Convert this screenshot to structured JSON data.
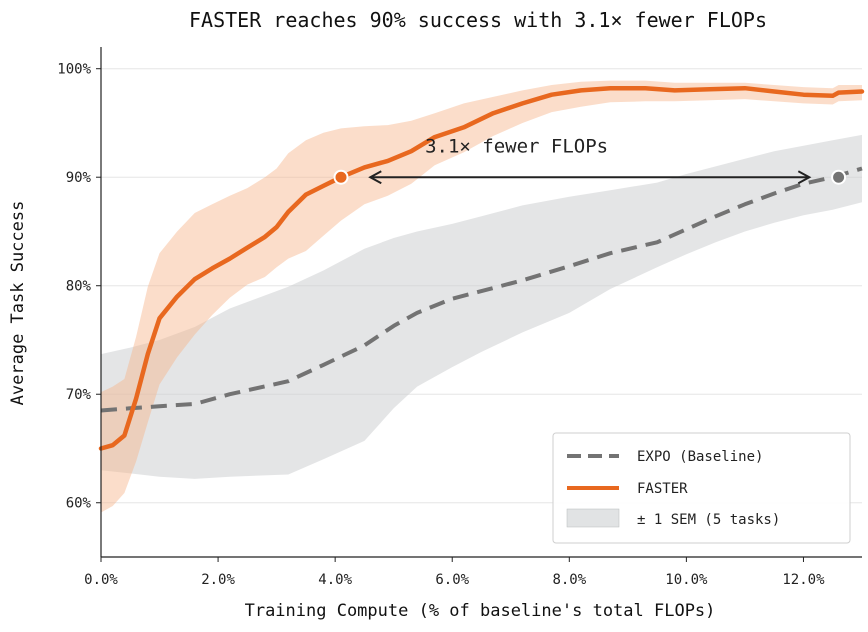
{
  "chart_data": {
    "type": "line",
    "title": "FASTER reaches 90% success with 3.1× fewer FLOPs",
    "xlabel": "Training Compute  (% of baseline's total FLOPs)",
    "ylabel": "Average Task Success",
    "xlim": [
      0,
      13
    ],
    "ylim": [
      55,
      102
    ],
    "x_ticks": [
      0,
      2,
      4,
      6,
      8,
      10,
      12
    ],
    "x_tick_labels": [
      "0.0%",
      "2.0%",
      "4.0%",
      "6.0%",
      "8.0%",
      "10.0%",
      "12.0%"
    ],
    "y_ticks": [
      60,
      70,
      80,
      90,
      100
    ],
    "y_tick_labels": [
      "60%",
      "70%",
      "80%",
      "90%",
      "100%"
    ],
    "grid": "horizontal",
    "legend_position": "bottom-right",
    "legend": [
      "EXPO (Baseline)",
      "FASTER",
      "± 1 SEM (5 tasks)"
    ],
    "series": [
      {
        "name": "EXPO (Baseline)",
        "color": "#737373",
        "style": "dashed",
        "x": [
          0,
          0.5,
          1,
          1.6,
          2.2,
          3.2,
          3.8,
          4.5,
          5,
          5.4,
          6,
          6.5,
          7.2,
          8,
          8.7,
          9.5,
          10,
          10.5,
          11,
          11.5,
          12,
          12.5,
          13
        ],
        "y": [
          68.5,
          68.7,
          68.9,
          69.1,
          70,
          71.2,
          72.7,
          74.5,
          76.3,
          77.5,
          78.8,
          79.5,
          80.5,
          81.8,
          83,
          84,
          85.2,
          86.4,
          87.5,
          88.5,
          89.4,
          90,
          90.8
        ],
        "lower": [
          63,
          62.7,
          62.4,
          62.2,
          62.4,
          62.6,
          64,
          65.7,
          68.7,
          70.7,
          72.5,
          73.9,
          75.7,
          77.5,
          79.7,
          81.7,
          82.9,
          84,
          85,
          85.8,
          86.5,
          87,
          87.7
        ],
        "upper": [
          73.7,
          74.3,
          75,
          76.2,
          77.9,
          79.9,
          81.4,
          83.4,
          84.4,
          85,
          85.7,
          86.4,
          87.4,
          88.2,
          88.8,
          89.5,
          90.3,
          91,
          91.7,
          92.4,
          92.9,
          93.4,
          93.9
        ]
      },
      {
        "name": "FASTER",
        "color": "#e8681f",
        "style": "solid",
        "x": [
          0,
          0.2,
          0.4,
          0.6,
          0.8,
          1.0,
          1.3,
          1.6,
          1.9,
          2.2,
          2.5,
          2.8,
          3.0,
          3.2,
          3.5,
          3.8,
          4.1,
          4.5,
          4.9,
          5.3,
          5.7,
          6.2,
          6.7,
          7.2,
          7.7,
          8.2,
          8.7,
          9.3,
          9.8,
          10.4,
          11,
          11.5,
          12,
          12.5,
          12.6,
          13
        ],
        "y": [
          65,
          65.3,
          66.2,
          69.6,
          73.7,
          77,
          79,
          80.6,
          81.6,
          82.5,
          83.5,
          84.5,
          85.4,
          86.8,
          88.4,
          89.2,
          90,
          90.9,
          91.5,
          92.4,
          93.7,
          94.6,
          95.9,
          96.8,
          97.6,
          98,
          98.2,
          98.2,
          98,
          98.1,
          98.2,
          97.9,
          97.6,
          97.5,
          97.8,
          97.9
        ],
        "lower": [
          59.1,
          59.7,
          60.9,
          63.8,
          67.4,
          70.9,
          73.4,
          75.5,
          77.3,
          78.9,
          80.1,
          80.8,
          81.7,
          82.5,
          83.2,
          84.6,
          86,
          87.5,
          88.3,
          89.4,
          91.1,
          92.3,
          93.8,
          95,
          96,
          96.5,
          96.9,
          97,
          97,
          97.1,
          97.2,
          97,
          96.8,
          96.7,
          97,
          97.1
        ],
        "upper": [
          70.2,
          70.7,
          71.4,
          75.3,
          79.9,
          83,
          85,
          86.7,
          87.5,
          88.3,
          89,
          90,
          90.8,
          92.2,
          93.4,
          94.1,
          94.5,
          94.7,
          94.8,
          95.2,
          95.9,
          96.8,
          97.4,
          98,
          98.5,
          98.8,
          98.9,
          98.9,
          98.7,
          98.7,
          98.7,
          98.5,
          98.3,
          98.2,
          98.5,
          98.5
        ]
      }
    ],
    "markers": [
      {
        "series": "FASTER",
        "x": 4.1,
        "y": 90,
        "color": "#e8681f"
      },
      {
        "series": "EXPO (Baseline)",
        "x": 12.6,
        "y": 90,
        "color": "#737373"
      }
    ],
    "annotation": {
      "text": "3.1× fewer FLOPs",
      "x": 7.1,
      "y": 92.3,
      "arrow_from_x": 4.6,
      "arrow_to_x": 12.1,
      "arrow_y": 90
    }
  }
}
